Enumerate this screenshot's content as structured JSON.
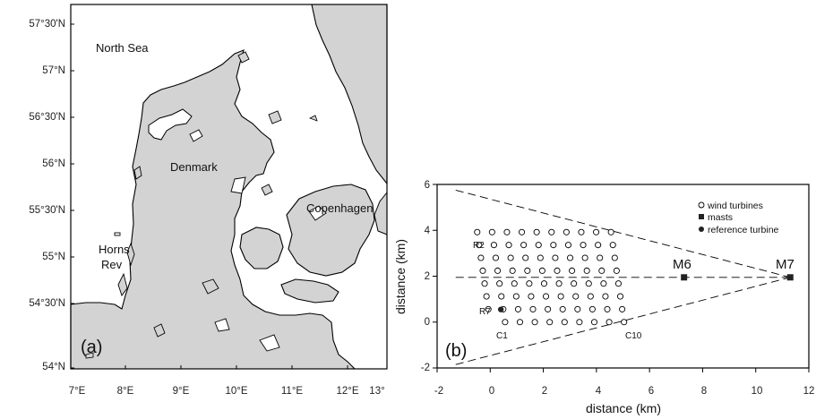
{
  "map_panel": {
    "panel_label": "(a)",
    "lat_ticks": [
      "57°30'N",
      "57°N",
      "56°30'N",
      "56°N",
      "55°30'N",
      "55°N",
      "54°30'N",
      "54°N"
    ],
    "lon_ticks": [
      "7°E",
      "8°E",
      "9°E",
      "10°E",
      "11°E",
      "12°E",
      "13°"
    ],
    "places": {
      "north_sea": "North Sea",
      "denmark": "Denmark",
      "copenhagen": "Copenhagen",
      "horns": "Horns",
      "rev": "Rev"
    },
    "colors": {
      "land": "#d3d3d3",
      "water": "#ffffff",
      "coast": "#000000"
    }
  },
  "layout_panel": {
    "panel_label": "(b)",
    "x_axis_label": "distance (km)",
    "y_axis_label": "distance (km)",
    "x_ticks": [
      "-2",
      "0",
      "2",
      "4",
      "6",
      "8",
      "10",
      "12"
    ],
    "y_ticks": [
      "-2",
      "0",
      "2",
      "4",
      "6"
    ],
    "labels": {
      "r2": "R2",
      "r7": "R7",
      "c1": "C1",
      "c10": "C10",
      "m6": "M6",
      "m7": "M7"
    },
    "legend": {
      "wind_turbines": "wind turbines",
      "masts": "masts",
      "reference_turbine": "reference turbine"
    }
  },
  "chart_data": {
    "type": "scatter",
    "xlabel": "distance (km)",
    "ylabel": "distance (km)",
    "xlim": [
      -2,
      12
    ],
    "ylim": [
      -2,
      6
    ],
    "legend_position": "top-right",
    "series": [
      {
        "name": "wind turbines",
        "marker": "open-circle",
        "grid": {
          "columns": 10,
          "rows": 8,
          "origin": [
            0.0,
            0.0
          ],
          "column_step": [
            0.56,
            0.0
          ],
          "row_step": [
            -0.07,
            0.56
          ],
          "note_excluded": [
            [
              0,
              0
            ]
          ]
        }
      },
      {
        "name": "masts",
        "marker": "square",
        "points": [
          [
            7.3,
            1.95
          ],
          [
            11.3,
            1.95
          ]
        ]
      },
      {
        "name": "reference turbine",
        "marker": "filled-circle",
        "points": [
          [
            0.4,
            0.55
          ]
        ]
      }
    ],
    "guide_lines": [
      {
        "style": "dashed",
        "from": [
          -1.3,
          5.75
        ],
        "to": [
          11.3,
          1.95
        ]
      },
      {
        "style": "dashed",
        "from": [
          -1.3,
          -1.85
        ],
        "to": [
          11.3,
          1.95
        ]
      },
      {
        "style": "dashed",
        "from": [
          -1.3,
          1.95
        ],
        "to": [
          11.3,
          1.95
        ]
      }
    ]
  }
}
